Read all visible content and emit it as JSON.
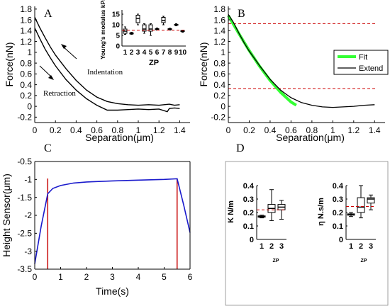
{
  "chart_data": [
    {
      "panel": "A",
      "type": "line",
      "xlabel": "Separation(μm)",
      "ylabel": "Force(nN)",
      "xlim": [
        0,
        1.5
      ],
      "ylim": [
        -0.3,
        1.85
      ],
      "xticks": [
        0,
        0.2,
        0.4,
        0.6,
        0.8,
        1,
        1.2,
        1.4
      ],
      "yticks": [
        -0.2,
        0,
        0.2,
        0.4,
        0.6,
        0.8,
        1,
        1.2,
        1.4,
        1.6,
        1.8
      ],
      "annotations": [
        "Indentation",
        "Retraction"
      ],
      "series": [
        {
          "values": [
            [
              0,
              1.65
            ],
            [
              0.05,
              1.45
            ],
            [
              0.1,
              1.27
            ],
            [
              0.15,
              1.1
            ],
            [
              0.2,
              0.95
            ],
            [
              0.3,
              0.7
            ],
            [
              0.4,
              0.48
            ],
            [
              0.5,
              0.3
            ],
            [
              0.6,
              0.17
            ],
            [
              0.7,
              0.09
            ],
            [
              0.8,
              0.05
            ],
            [
              0.9,
              0.03
            ],
            [
              1.0,
              0.02
            ],
            [
              1.1,
              0.03
            ],
            [
              1.2,
              0.02
            ],
            [
              1.3,
              0.04
            ],
            [
              1.35,
              0.02
            ],
            [
              1.4,
              0.03
            ]
          ]
        },
        {
          "values": [
            [
              0,
              1.45
            ],
            [
              0.05,
              1.25
            ],
            [
              0.1,
              1.06
            ],
            [
              0.15,
              0.9
            ],
            [
              0.2,
              0.75
            ],
            [
              0.3,
              0.5
            ],
            [
              0.4,
              0.3
            ],
            [
              0.5,
              0.14
            ],
            [
              0.6,
              0.02
            ],
            [
              0.7,
              -0.07
            ],
            [
              0.8,
              -0.07
            ],
            [
              0.9,
              -0.06
            ],
            [
              1.0,
              -0.05
            ],
            [
              1.1,
              -0.06
            ],
            [
              1.2,
              -0.05
            ],
            [
              1.28,
              -0.1
            ],
            [
              1.3,
              -0.04
            ],
            [
              1.35,
              -0.03
            ],
            [
              1.4,
              -0.04
            ]
          ]
        }
      ]
    },
    {
      "panel": "A-inset",
      "type": "box",
      "xlabel": "ZP",
      "ylabel": "Young's modulus kPa",
      "categories": [
        "1",
        "2",
        "3",
        "4",
        "5",
        "6",
        "7",
        "8",
        "9",
        "10"
      ],
      "ylim": [
        0,
        17
      ],
      "yticks": [
        0,
        5,
        10,
        15
      ],
      "reference_line": 7.5,
      "boxes": [
        {
          "min": 5.5,
          "q1": 6,
          "median": 7,
          "q3": 8,
          "max": 9
        },
        {
          "min": 5.5,
          "q1": 5.7,
          "median": 6,
          "q3": 6.2,
          "max": 6.5
        },
        {
          "min": 10,
          "q1": 11,
          "median": 13,
          "q3": 14.5,
          "max": 15
        },
        {
          "min": 6,
          "q1": 7,
          "median": 8,
          "q3": 10,
          "max": 10.5
        },
        {
          "min": 5,
          "q1": 7,
          "median": 8,
          "q3": 10,
          "max": 10.5
        },
        {
          "min": 7.5,
          "q1": 7.7,
          "median": 8,
          "q3": 8.2,
          "max": 8.5
        },
        {
          "min": 10,
          "q1": 11,
          "median": 12,
          "q3": 13.5,
          "max": 14
        },
        {
          "min": 7.5,
          "q1": 7.7,
          "median": 8,
          "q3": 8.2,
          "max": 8.4
        },
        {
          "min": 9.5,
          "q1": 9.8,
          "median": 10,
          "q3": 10.2,
          "max": 10.5
        },
        {
          "min": 6.5,
          "q1": 6.8,
          "median": 7,
          "q3": 7.3,
          "max": 7.5
        }
      ]
    },
    {
      "panel": "B",
      "type": "line",
      "xlabel": "Separation(μm)",
      "ylabel": "Force(nN)",
      "xlim": [
        0,
        1.5
      ],
      "ylim": [
        -0.3,
        1.85
      ],
      "xticks": [
        0,
        0.2,
        0.4,
        0.6,
        0.8,
        1,
        1.2,
        1.4
      ],
      "yticks": [
        -0.2,
        0,
        0.2,
        0.4,
        0.6,
        0.8,
        1,
        1.2,
        1.4,
        1.6,
        1.8
      ],
      "hlines": [
        1.53,
        0.33
      ],
      "legend": [
        "Fit",
        "Extend"
      ],
      "legend_position": "right",
      "series": [
        {
          "name": "Fit",
          "values": [
            [
              0,
              1.68
            ],
            [
              0.1,
              1.35
            ],
            [
              0.2,
              1.03
            ],
            [
              0.3,
              0.74
            ],
            [
              0.4,
              0.48
            ],
            [
              0.5,
              0.26
            ],
            [
              0.6,
              0.08
            ],
            [
              0.65,
              0.02
            ]
          ]
        },
        {
          "name": "Extend",
          "values": [
            [
              0,
              1.7
            ],
            [
              0.05,
              1.55
            ],
            [
              0.1,
              1.36
            ],
            [
              0.15,
              1.18
            ],
            [
              0.2,
              1.02
            ],
            [
              0.3,
              0.75
            ],
            [
              0.4,
              0.5
            ],
            [
              0.5,
              0.3
            ],
            [
              0.55,
              0.23
            ],
            [
              0.6,
              0.16
            ],
            [
              0.7,
              0.07
            ],
            [
              0.8,
              0.02
            ],
            [
              0.9,
              -0.01
            ],
            [
              1.0,
              -0.02
            ],
            [
              1.1,
              -0.01
            ],
            [
              1.2,
              0
            ],
            [
              1.3,
              0.02
            ],
            [
              1.4,
              0.03
            ]
          ]
        }
      ]
    },
    {
      "panel": "C",
      "type": "line",
      "xlabel": "Time(s)",
      "ylabel": "Height Sensor(μm)",
      "xlim": [
        0,
        6
      ],
      "ylim": [
        -3.5,
        -0.5
      ],
      "y_inverted": true,
      "xticks": [
        0,
        1,
        2,
        3,
        4,
        5,
        6
      ],
      "yticks": [
        -3.5,
        -3,
        -2.5,
        -2,
        -1.5,
        -1,
        -0.5
      ],
      "vlines": [
        0.5,
        5.5
      ],
      "series": [
        {
          "values": [
            [
              0,
              -3.35
            ],
            [
              0.25,
              -2.3
            ],
            [
              0.5,
              -1.4
            ],
            [
              0.7,
              -1.25
            ],
            [
              1.0,
              -1.17
            ],
            [
              1.5,
              -1.1
            ],
            [
              2,
              -1.07
            ],
            [
              3,
              -1.04
            ],
            [
              4,
              -1.02
            ],
            [
              5,
              -1.0
            ],
            [
              5.5,
              -0.98
            ],
            [
              5.75,
              -1.7
            ],
            [
              6,
              -2.48
            ]
          ]
        }
      ]
    },
    {
      "panel": "D-K",
      "type": "box",
      "xlabel": "ZP",
      "ylabel": "K N/m",
      "categories": [
        "1",
        "2",
        "3"
      ],
      "ylim": [
        0,
        0.4
      ],
      "yticks": [
        0,
        0.1,
        0.2,
        0.3,
        0.4
      ],
      "reference_line": 0.22,
      "boxes": [
        {
          "min": 0.16,
          "q1": 0.165,
          "median": 0.17,
          "q3": 0.175,
          "max": 0.18
        },
        {
          "min": 0.14,
          "q1": 0.2,
          "median": 0.23,
          "q3": 0.26,
          "max": 0.37
        },
        {
          "min": 0.15,
          "q1": 0.22,
          "median": 0.24,
          "q3": 0.26,
          "max": 0.29
        }
      ]
    },
    {
      "panel": "D-eta",
      "type": "box",
      "xlabel": "ZP",
      "ylabel": "η N.s/m",
      "categories": [
        "1",
        "2",
        "3"
      ],
      "ylim": [
        0,
        0.4
      ],
      "yticks": [
        0,
        0.1,
        0.2,
        0.3,
        0.4
      ],
      "reference_line": 0.245,
      "boxes": [
        {
          "min": 0.17,
          "q1": 0.18,
          "median": 0.185,
          "q3": 0.19,
          "max": 0.2
        },
        {
          "min": 0.16,
          "q1": 0.2,
          "median": 0.24,
          "q3": 0.31,
          "max": 0.4
        },
        {
          "min": 0.22,
          "q1": 0.27,
          "median": 0.3,
          "q3": 0.31,
          "max": 0.33
        }
      ]
    }
  ],
  "panel_labels": {
    "a": "A",
    "b": "B",
    "c": "C",
    "d": "D"
  },
  "colors": {
    "line": "#000000",
    "fit": "#33ff33",
    "ref": "#cc0000",
    "height": "#1a1acc",
    "vline": "#cc1a1a"
  }
}
